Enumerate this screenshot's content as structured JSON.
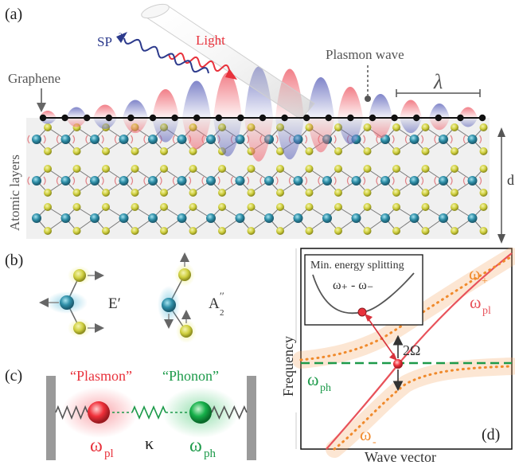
{
  "panels": {
    "a": {
      "label": "(a)",
      "sp3": "SP",
      "sp3_sup": "3",
      "light": "Light",
      "plasmon_wave": "Plasmon wave",
      "graphene": "Graphene",
      "lambda": "λ",
      "atomic_layers": "Atomic layers",
      "thickness": "d"
    },
    "b": {
      "label": "(b)",
      "mode1": "E′",
      "mode2_base": "A",
      "mode2_sub": "2",
      "mode2_sup": "′′"
    },
    "c": {
      "label": "(c)",
      "plasmon": "“Plasmon”",
      "phonon": "“Phonon”",
      "omega_pl": "ω",
      "pl_sub": "pl",
      "kappa": "κ",
      "omega_ph": "ω",
      "ph_sub": "ph"
    },
    "d": {
      "label": "(d)",
      "inset_title": "Min. energy splitting",
      "inset_formula": "ω₊ - ω₋",
      "ylabel": "Frequency",
      "xlabel": "Wave vector",
      "omega_plus": "ω",
      "plus_sub": "+",
      "omega_pl": "ω",
      "pl_sub": "pl",
      "omega_minus": "ω",
      "minus_sub": "-",
      "omega_ph": "ω",
      "ph_sub": "ph",
      "splitting": "2Ω"
    }
  },
  "colors": {
    "red": "#e8525a",
    "blue": "#2c3a8c",
    "orange": "#f08a2c",
    "green": "#1d9a4a",
    "teal": "#2f8fa8",
    "yellow": "#c9c93a",
    "gray": "#666666"
  }
}
